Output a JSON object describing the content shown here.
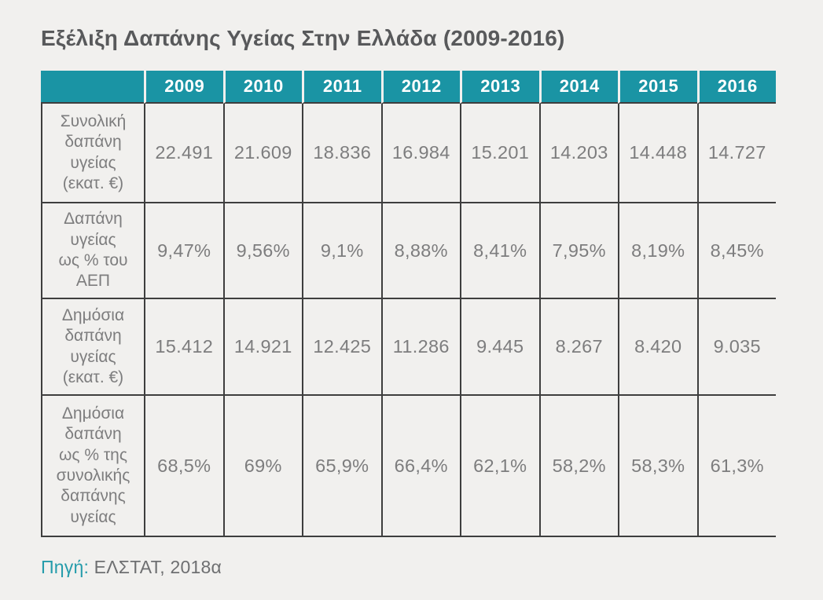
{
  "page": {
    "title": "Εξέλιξη Δαπάνης Υγείας Στην Ελλάδα (2009-2016)"
  },
  "colors": {
    "header_teal": "#1a94a4",
    "background": "#f1f0ee",
    "grid_border": "#3e3e3e",
    "body_text": "#7d7d7e",
    "title_text": "#58595b",
    "source_prefix_teal": "#259cab"
  },
  "table": {
    "corner_label": "",
    "column_headers": [
      "2009",
      "2010",
      "2011",
      "2012",
      "2013",
      "2014",
      "2015",
      "2016"
    ],
    "rows": [
      {
        "label": "Συνολική\nδαπάνη\nυγείας\n(εκατ. €)",
        "values": [
          "22.491",
          "21.609",
          "18.836",
          "16.984",
          "15.201",
          "14.203",
          "14.448",
          "14.727"
        ]
      },
      {
        "label": "Δαπάνη\nυγείας\nως % του\nΑΕΠ",
        "values": [
          "9,47%",
          "9,56%",
          "9,1%",
          "8,88%",
          "8,41%",
          "7,95%",
          "8,19%",
          "8,45%"
        ]
      },
      {
        "label": "Δημόσια\nδαπάνη\nυγείας\n(εκατ. €)",
        "values": [
          "15.412",
          "14.921",
          "12.425",
          "11.286",
          "9.445",
          "8.267",
          "8.420",
          "9.035"
        ]
      },
      {
        "label": "Δημόσια\nδαπάνη\nως % της\nσυνολικής\nδαπάνης\nυγείας",
        "values": [
          "68,5%",
          "69%",
          "65,9%",
          "66,4%",
          "62,1%",
          "58,2%",
          "58,3%",
          "61,3%"
        ]
      }
    ]
  },
  "source": {
    "prefix": "Πηγή:",
    "text": " ΕΛΣΤΑΤ, 2018α"
  }
}
